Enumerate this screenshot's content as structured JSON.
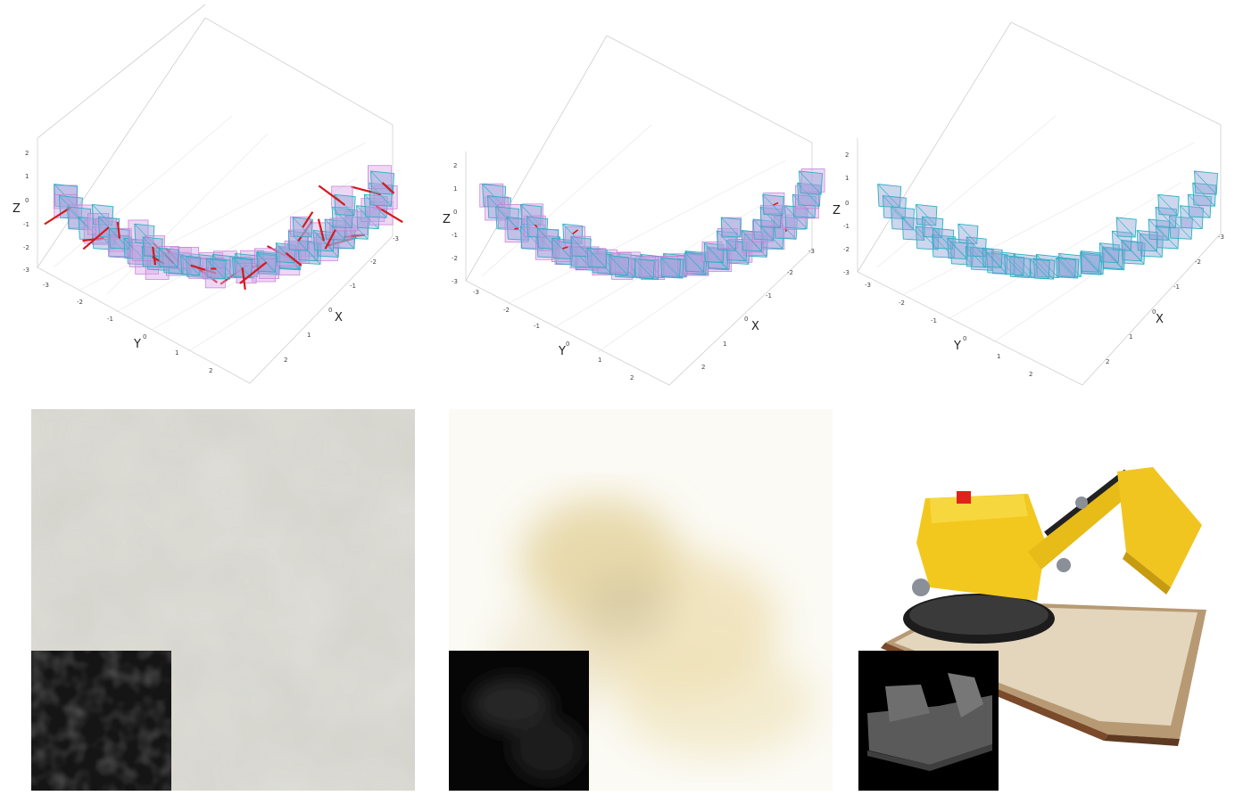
{
  "figure": {
    "rows": [
      {
        "kind": "camera-pose-plots",
        "panels": [
          {
            "id": "pose-plot-1",
            "axis_labels": {
              "x": "X",
              "y": "Y",
              "z": "Z"
            },
            "noise": "high",
            "gt_color": "#d9a6e6",
            "pred_color": "#2bb0c4",
            "error_color": "#d7191c"
          },
          {
            "id": "pose-plot-2",
            "axis_labels": {
              "x": "X",
              "y": "Y",
              "z": "Z"
            },
            "noise": "low",
            "gt_color": "#d9a6e6",
            "pred_color": "#2bb0c4",
            "error_color": "#d7191c"
          },
          {
            "id": "pose-plot-3",
            "axis_labels": {
              "x": "X",
              "y": "Y",
              "z": "Z"
            },
            "noise": "none",
            "gt_color": "#d9a6e6",
            "pred_color": "#2bb0c4",
            "error_color": "#d7191c"
          }
        ],
        "z_ticks": [
          "2",
          "1",
          "0",
          "-1",
          "-2",
          "-3"
        ],
        "x_ticks": [
          "-3",
          "-2",
          "-1",
          "0",
          "1",
          "2"
        ],
        "y_ticks": [
          "-3",
          "-2",
          "-1",
          "0",
          "1",
          "2"
        ]
      },
      {
        "kind": "renderings",
        "panels": [
          {
            "id": "render-1",
            "content": "blurry gray noise",
            "inset": "depth map (dark, noisy)"
          },
          {
            "id": "render-2",
            "content": "blurry yellow haze",
            "inset": "depth map (dark, faint)"
          },
          {
            "id": "render-3",
            "content": "lego bulldozer on baseplate",
            "inset": "depth map (bulldozer silhouette)"
          }
        ]
      }
    ]
  }
}
